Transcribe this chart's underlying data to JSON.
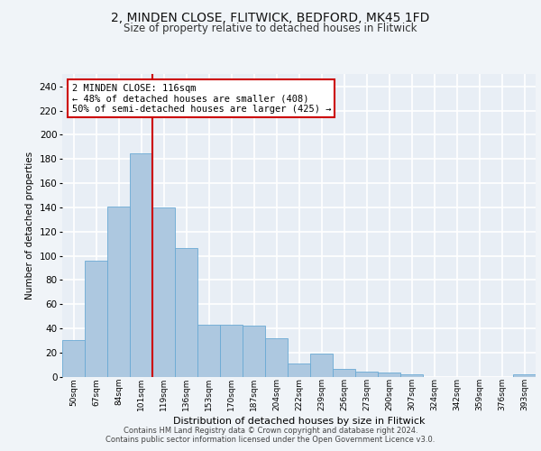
{
  "title1": "2, MINDEN CLOSE, FLITWICK, BEDFORD, MK45 1FD",
  "title2": "Size of property relative to detached houses in Flitwick",
  "xlabel": "Distribution of detached houses by size in Flitwick",
  "ylabel": "Number of detached properties",
  "categories": [
    "50sqm",
    "67sqm",
    "84sqm",
    "101sqm",
    "119sqm",
    "136sqm",
    "153sqm",
    "170sqm",
    "187sqm",
    "204sqm",
    "222sqm",
    "239sqm",
    "256sqm",
    "273sqm",
    "290sqm",
    "307sqm",
    "324sqm",
    "342sqm",
    "359sqm",
    "376sqm",
    "393sqm"
  ],
  "values": [
    30,
    96,
    141,
    185,
    140,
    106,
    43,
    43,
    42,
    32,
    11,
    19,
    6,
    4,
    3,
    2,
    0,
    0,
    0,
    0,
    2
  ],
  "bar_color": "#adc8e0",
  "bar_edge_color": "#6aaad4",
  "vline_x_index": 3.5,
  "vline_color": "#cc0000",
  "annotation_text": "2 MINDEN CLOSE: 116sqm\n← 48% of detached houses are smaller (408)\n50% of semi-detached houses are larger (425) →",
  "annotation_box_color": "#ffffff",
  "annotation_box_edge": "#cc0000",
  "ylim": [
    0,
    250
  ],
  "yticks": [
    0,
    20,
    40,
    60,
    80,
    100,
    120,
    140,
    160,
    180,
    200,
    220,
    240
  ],
  "bg_color": "#e8eef5",
  "grid_color": "#ffffff",
  "fig_bg_color": "#f0f4f8",
  "footer": "Contains HM Land Registry data © Crown copyright and database right 2024.\nContains public sector information licensed under the Open Government Licence v3.0."
}
